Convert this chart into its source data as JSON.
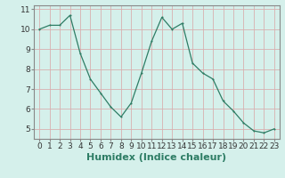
{
  "x": [
    0,
    1,
    2,
    3,
    4,
    5,
    6,
    7,
    8,
    9,
    10,
    11,
    12,
    13,
    14,
    15,
    16,
    17,
    18,
    19,
    20,
    21,
    22,
    23
  ],
  "y": [
    10.0,
    10.2,
    10.2,
    10.7,
    8.8,
    7.5,
    6.8,
    6.1,
    5.6,
    6.3,
    7.8,
    9.4,
    10.6,
    10.0,
    10.3,
    8.3,
    7.8,
    7.5,
    6.4,
    5.9,
    5.3,
    4.9,
    4.8,
    5.0
  ],
  "xlabel": "Humidex (Indice chaleur)",
  "ylim": [
    4.5,
    11.2
  ],
  "xlim": [
    -0.5,
    23.5
  ],
  "yticks": [
    5,
    6,
    7,
    8,
    9,
    10,
    11
  ],
  "xticks": [
    0,
    1,
    2,
    3,
    4,
    5,
    6,
    7,
    8,
    9,
    10,
    11,
    12,
    13,
    14,
    15,
    16,
    17,
    18,
    19,
    20,
    21,
    22,
    23
  ],
  "line_color": "#2e7d65",
  "marker_size": 3,
  "bg_color": "#d5f0eb",
  "grid_color": "#d8b0b0",
  "tick_label_fontsize": 6.5,
  "xlabel_fontsize": 8,
  "spine_color": "#888888"
}
